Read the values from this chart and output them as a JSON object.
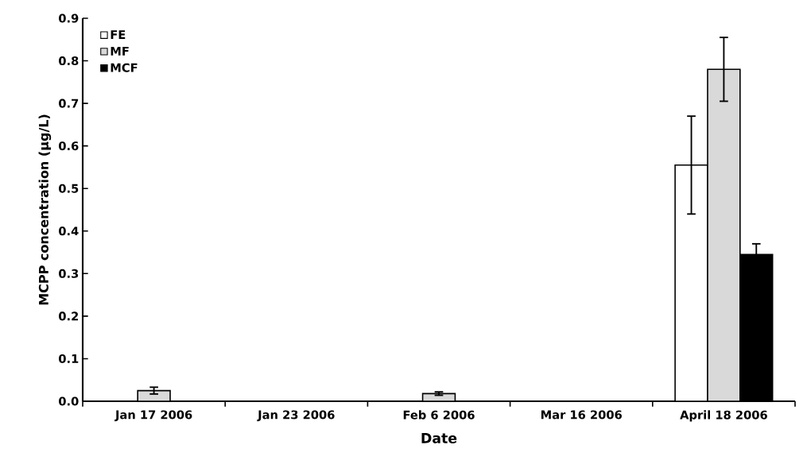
{
  "chart_data": {
    "type": "bar",
    "xlabel": "Date",
    "ylabel": "MCPP concentration (µg/L)",
    "categories": [
      "Jan 17 2006",
      "Jan 23 2006",
      "Feb 6 2006",
      "Mar 16 2006",
      "April 18 2006"
    ],
    "series": [
      {
        "name": "FE",
        "color": "#ffffff",
        "values": [
          null,
          null,
          null,
          null,
          0.555
        ],
        "errors": [
          null,
          null,
          null,
          null,
          0.115
        ]
      },
      {
        "name": "MF",
        "color": "#d9d9d9",
        "values": [
          0.025,
          null,
          0.018,
          null,
          0.78
        ],
        "errors": [
          0.008,
          null,
          0.004,
          null,
          0.075
        ]
      },
      {
        "name": "MCF",
        "color": "#000000",
        "values": [
          null,
          null,
          null,
          null,
          0.345
        ],
        "errors": [
          null,
          null,
          null,
          null,
          0.025
        ]
      }
    ],
    "ylim": [
      0,
      0.9
    ],
    "yticks": [
      {
        "value": 0,
        "label": "0.0"
      },
      0.1,
      0.2,
      0.3,
      0.4,
      0.5,
      0.6,
      0.7,
      0.8,
      0.9
    ],
    "legend": "top left"
  }
}
